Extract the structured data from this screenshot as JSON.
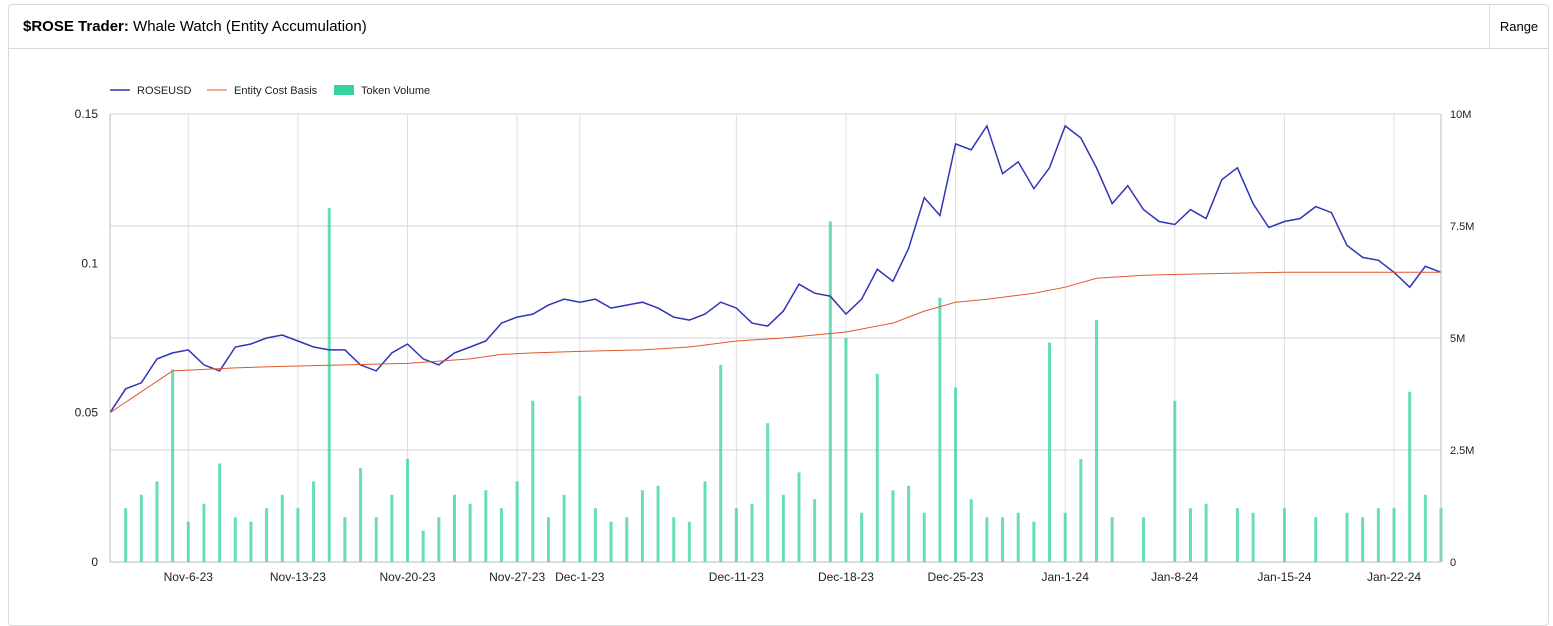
{
  "header": {
    "title_bold": "$ROSE Trader:",
    "title_rest": "Whale Watch (Entity Accumulation)",
    "range_label": "Range"
  },
  "colors": {
    "price": "#2f35b5",
    "cost_basis": "#e0572f",
    "volume": "#36d39c"
  },
  "chart_data": {
    "type": "line",
    "title": "",
    "xlabel": "",
    "ylabel": "",
    "legend": {
      "placement": "top-left",
      "entries": [
        "ROSEUSD",
        "Entity Cost Basis",
        "Token Volume"
      ]
    },
    "grid": true,
    "x_range": [
      "2023-11-01",
      "2024-01-25"
    ],
    "x_ticks": [
      "Nov-6-23",
      "Nov-13-23",
      "Nov-20-23",
      "Nov-27-23",
      "Dec-1-23",
      "Dec-11-23",
      "Dec-18-23",
      "Dec-25-23",
      "Jan-1-24",
      "Jan-8-24",
      "Jan-15-24",
      "Jan-22-24"
    ],
    "x_tick_dates": [
      "2023-11-06",
      "2023-11-13",
      "2023-11-20",
      "2023-11-27",
      "2023-12-01",
      "2023-12-11",
      "2023-12-18",
      "2023-12-25",
      "2024-01-01",
      "2024-01-08",
      "2024-01-15",
      "2024-01-22"
    ],
    "y_left": {
      "range": [
        0,
        0.15
      ],
      "ticks": [
        "0",
        "0.05",
        "0.1",
        "0.15"
      ]
    },
    "y_right": {
      "range": [
        0,
        10000000
      ],
      "ticks": [
        "0",
        "2.5M",
        "5M",
        "7.5M",
        "10M"
      ]
    },
    "series": [
      {
        "name": "ROSEUSD",
        "axis": "left",
        "points": [
          [
            "2023-11-01",
            0.05
          ],
          [
            "2023-11-02",
            0.058
          ],
          [
            "2023-11-03",
            0.06
          ],
          [
            "2023-11-04",
            0.068
          ],
          [
            "2023-11-05",
            0.07
          ],
          [
            "2023-11-06",
            0.071
          ],
          [
            "2023-11-07",
            0.066
          ],
          [
            "2023-11-08",
            0.064
          ],
          [
            "2023-11-09",
            0.072
          ],
          [
            "2023-11-10",
            0.073
          ],
          [
            "2023-11-11",
            0.075
          ],
          [
            "2023-11-12",
            0.076
          ],
          [
            "2023-11-13",
            0.074
          ],
          [
            "2023-11-14",
            0.072
          ],
          [
            "2023-11-15",
            0.071
          ],
          [
            "2023-11-16",
            0.071
          ],
          [
            "2023-11-17",
            0.066
          ],
          [
            "2023-11-18",
            0.064
          ],
          [
            "2023-11-19",
            0.07
          ],
          [
            "2023-11-20",
            0.073
          ],
          [
            "2023-11-21",
            0.068
          ],
          [
            "2023-11-22",
            0.066
          ],
          [
            "2023-11-23",
            0.07
          ],
          [
            "2023-11-24",
            0.072
          ],
          [
            "2023-11-25",
            0.074
          ],
          [
            "2023-11-26",
            0.08
          ],
          [
            "2023-11-27",
            0.082
          ],
          [
            "2023-11-28",
            0.083
          ],
          [
            "2023-11-29",
            0.086
          ],
          [
            "2023-11-30",
            0.088
          ],
          [
            "2023-12-01",
            0.087
          ],
          [
            "2023-12-02",
            0.088
          ],
          [
            "2023-12-03",
            0.085
          ],
          [
            "2023-12-04",
            0.086
          ],
          [
            "2023-12-05",
            0.087
          ],
          [
            "2023-12-06",
            0.085
          ],
          [
            "2023-12-07",
            0.082
          ],
          [
            "2023-12-08",
            0.081
          ],
          [
            "2023-12-09",
            0.083
          ],
          [
            "2023-12-10",
            0.087
          ],
          [
            "2023-12-11",
            0.085
          ],
          [
            "2023-12-12",
            0.08
          ],
          [
            "2023-12-13",
            0.079
          ],
          [
            "2023-12-14",
            0.084
          ],
          [
            "2023-12-15",
            0.093
          ],
          [
            "2023-12-16",
            0.09
          ],
          [
            "2023-12-17",
            0.089
          ],
          [
            "2023-12-18",
            0.083
          ],
          [
            "2023-12-19",
            0.088
          ],
          [
            "2023-12-20",
            0.098
          ],
          [
            "2023-12-21",
            0.094
          ],
          [
            "2023-12-22",
            0.105
          ],
          [
            "2023-12-23",
            0.122
          ],
          [
            "2023-12-24",
            0.116
          ],
          [
            "2023-12-25",
            0.14
          ],
          [
            "2023-12-26",
            0.138
          ],
          [
            "2023-12-27",
            0.146
          ],
          [
            "2023-12-28",
            0.13
          ],
          [
            "2023-12-29",
            0.134
          ],
          [
            "2023-12-30",
            0.125
          ],
          [
            "2023-12-31",
            0.132
          ],
          [
            "2024-01-01",
            0.146
          ],
          [
            "2024-01-02",
            0.142
          ],
          [
            "2024-01-03",
            0.132
          ],
          [
            "2024-01-04",
            0.12
          ],
          [
            "2024-01-05",
            0.126
          ],
          [
            "2024-01-06",
            0.118
          ],
          [
            "2024-01-07",
            0.114
          ],
          [
            "2024-01-08",
            0.113
          ],
          [
            "2024-01-09",
            0.118
          ],
          [
            "2024-01-10",
            0.115
          ],
          [
            "2024-01-11",
            0.128
          ],
          [
            "2024-01-12",
            0.132
          ],
          [
            "2024-01-13",
            0.12
          ],
          [
            "2024-01-14",
            0.112
          ],
          [
            "2024-01-15",
            0.114
          ],
          [
            "2024-01-16",
            0.115
          ],
          [
            "2024-01-17",
            0.119
          ],
          [
            "2024-01-18",
            0.117
          ],
          [
            "2024-01-19",
            0.106
          ],
          [
            "2024-01-20",
            0.102
          ],
          [
            "2024-01-21",
            0.101
          ],
          [
            "2024-01-22",
            0.097
          ],
          [
            "2024-01-23",
            0.092
          ],
          [
            "2024-01-24",
            0.099
          ],
          [
            "2024-01-25",
            0.097
          ]
        ]
      },
      {
        "name": "Entity Cost Basis",
        "axis": "left",
        "points": [
          [
            "2023-11-01",
            0.05
          ],
          [
            "2023-11-03",
            0.057
          ],
          [
            "2023-11-05",
            0.064
          ],
          [
            "2023-11-07",
            0.0645
          ],
          [
            "2023-11-09",
            0.065
          ],
          [
            "2023-11-12",
            0.0655
          ],
          [
            "2023-11-16",
            0.066
          ],
          [
            "2023-11-20",
            0.0665
          ],
          [
            "2023-11-24",
            0.068
          ],
          [
            "2023-11-26",
            0.0695
          ],
          [
            "2023-11-28",
            0.07
          ],
          [
            "2023-12-01",
            0.0705
          ],
          [
            "2023-12-05",
            0.071
          ],
          [
            "2023-12-08",
            0.072
          ],
          [
            "2023-12-11",
            0.074
          ],
          [
            "2023-12-14",
            0.075
          ],
          [
            "2023-12-18",
            0.077
          ],
          [
            "2023-12-21",
            0.08
          ],
          [
            "2023-12-23",
            0.084
          ],
          [
            "2023-12-25",
            0.087
          ],
          [
            "2023-12-27",
            0.088
          ],
          [
            "2023-12-30",
            0.09
          ],
          [
            "2024-01-01",
            0.092
          ],
          [
            "2024-01-03",
            0.095
          ],
          [
            "2024-01-06",
            0.096
          ],
          [
            "2024-01-10",
            0.0965
          ],
          [
            "2024-01-15",
            0.097
          ],
          [
            "2024-01-20",
            0.097
          ],
          [
            "2024-01-25",
            0.097
          ]
        ]
      },
      {
        "name": "Token Volume",
        "axis": "right",
        "points": [
          [
            "2023-11-02",
            1200000
          ],
          [
            "2023-11-03",
            1500000
          ],
          [
            "2023-11-04",
            1800000
          ],
          [
            "2023-11-05",
            4300000
          ],
          [
            "2023-11-06",
            900000
          ],
          [
            "2023-11-07",
            1300000
          ],
          [
            "2023-11-08",
            2200000
          ],
          [
            "2023-11-09",
            1000000
          ],
          [
            "2023-11-10",
            900000
          ],
          [
            "2023-11-11",
            1200000
          ],
          [
            "2023-11-12",
            1500000
          ],
          [
            "2023-11-13",
            1200000
          ],
          [
            "2023-11-14",
            1800000
          ],
          [
            "2023-11-15",
            7900000
          ],
          [
            "2023-11-16",
            1000000
          ],
          [
            "2023-11-17",
            2100000
          ],
          [
            "2023-11-18",
            1000000
          ],
          [
            "2023-11-19",
            1500000
          ],
          [
            "2023-11-20",
            2300000
          ],
          [
            "2023-11-21",
            700000
          ],
          [
            "2023-11-22",
            1000000
          ],
          [
            "2023-11-23",
            1500000
          ],
          [
            "2023-11-24",
            1300000
          ],
          [
            "2023-11-25",
            1600000
          ],
          [
            "2023-11-26",
            1200000
          ],
          [
            "2023-11-27",
            1800000
          ],
          [
            "2023-11-28",
            3600000
          ],
          [
            "2023-11-29",
            1000000
          ],
          [
            "2023-11-30",
            1500000
          ],
          [
            "2023-12-01",
            3700000
          ],
          [
            "2023-12-02",
            1200000
          ],
          [
            "2023-12-03",
            900000
          ],
          [
            "2023-12-04",
            1000000
          ],
          [
            "2023-12-05",
            1600000
          ],
          [
            "2023-12-06",
            1700000
          ],
          [
            "2023-12-07",
            1000000
          ],
          [
            "2023-12-08",
            900000
          ],
          [
            "2023-12-09",
            1800000
          ],
          [
            "2023-12-10",
            4400000
          ],
          [
            "2023-12-11",
            1200000
          ],
          [
            "2023-12-12",
            1300000
          ],
          [
            "2023-12-13",
            3100000
          ],
          [
            "2023-12-14",
            1500000
          ],
          [
            "2023-12-15",
            2000000
          ],
          [
            "2023-12-16",
            1400000
          ],
          [
            "2023-12-17",
            7600000
          ],
          [
            "2023-12-18",
            5000000
          ],
          [
            "2023-12-19",
            1100000
          ],
          [
            "2023-12-20",
            4200000
          ],
          [
            "2023-12-21",
            1600000
          ],
          [
            "2023-12-22",
            1700000
          ],
          [
            "2023-12-23",
            1100000
          ],
          [
            "2023-12-24",
            5900000
          ],
          [
            "2023-12-25",
            3900000
          ],
          [
            "2023-12-26",
            1400000
          ],
          [
            "2023-12-27",
            1000000
          ],
          [
            "2023-12-28",
            1000000
          ],
          [
            "2023-12-29",
            1100000
          ],
          [
            "2023-12-30",
            900000
          ],
          [
            "2023-12-31",
            4900000
          ],
          [
            "2024-01-01",
            1100000
          ],
          [
            "2024-01-02",
            2300000
          ],
          [
            "2024-01-03",
            5400000
          ],
          [
            "2024-01-04",
            1000000
          ],
          [
            "2024-01-06",
            1000000
          ],
          [
            "2024-01-08",
            3600000
          ],
          [
            "2024-01-09",
            1200000
          ],
          [
            "2024-01-10",
            1300000
          ],
          [
            "2024-01-12",
            1200000
          ],
          [
            "2024-01-13",
            1100000
          ],
          [
            "2024-01-15",
            1200000
          ],
          [
            "2024-01-17",
            1000000
          ],
          [
            "2024-01-19",
            1100000
          ],
          [
            "2024-01-20",
            1000000
          ],
          [
            "2024-01-21",
            1200000
          ],
          [
            "2024-01-22",
            1200000
          ],
          [
            "2024-01-23",
            3800000
          ],
          [
            "2024-01-24",
            1500000
          ],
          [
            "2024-01-25",
            1200000
          ]
        ]
      }
    ]
  }
}
